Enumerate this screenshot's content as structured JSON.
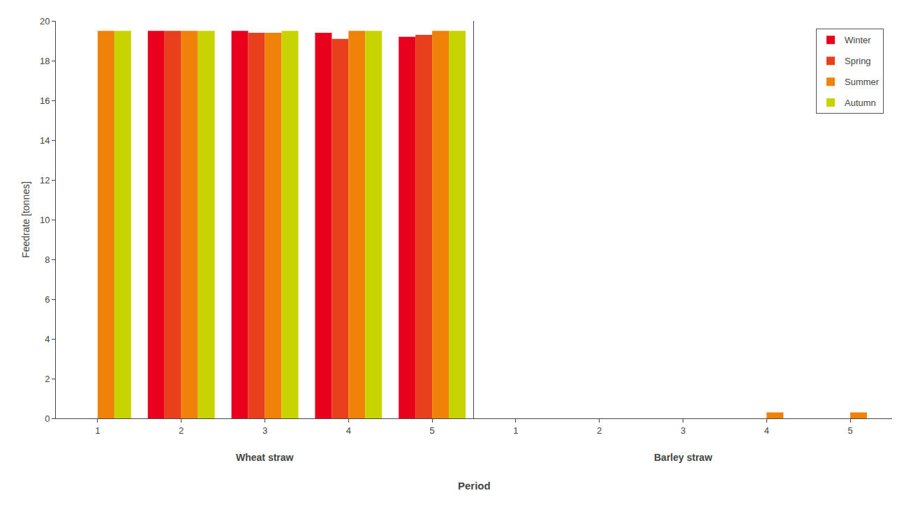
{
  "chart_data": [
    {
      "type": "bar",
      "title": "Wheat straw",
      "xlabel": "Period",
      "ylabel": "Feedrate [tonnes]",
      "categories": [
        1,
        2,
        3,
        4,
        5
      ],
      "series": [
        {
          "name": "Winter",
          "color": "#e8001c",
          "values": [
            0,
            19.5,
            19.5,
            19.4,
            19.2
          ]
        },
        {
          "name": "Spring",
          "color": "#e8401c",
          "values": [
            0,
            19.5,
            19.4,
            19.1,
            19.3
          ]
        },
        {
          "name": "Summer",
          "color": "#f0820a",
          "values": [
            19.5,
            19.5,
            19.4,
            19.5,
            19.5
          ]
        },
        {
          "name": "Autumn",
          "color": "#c8d400",
          "values": [
            19.5,
            19.5,
            19.5,
            19.5,
            19.5
          ]
        }
      ],
      "ylim": [
        0,
        20
      ],
      "yticks": [
        0,
        2,
        4,
        6,
        8,
        10,
        12,
        14,
        16,
        18,
        20
      ],
      "grid": false
    },
    {
      "type": "bar",
      "title": "Barley straw",
      "categories": [
        1,
        2,
        3,
        4,
        5
      ],
      "series": [
        {
          "name": "Winter",
          "color": "#e8001c",
          "values": [
            0,
            0,
            0,
            0,
            0
          ]
        },
        {
          "name": "Spring",
          "color": "#e8401c",
          "values": [
            0,
            0,
            0,
            0,
            0
          ]
        },
        {
          "name": "Summer",
          "color": "#f0820a",
          "values": [
            0,
            0,
            0,
            0.3,
            0.3
          ]
        },
        {
          "name": "Autumn",
          "color": "#c8d400",
          "values": [
            0,
            0,
            0,
            0,
            0
          ]
        }
      ],
      "ylim": [
        0,
        20
      ],
      "yticks": [
        0,
        2,
        4,
        6,
        8,
        10,
        12,
        14,
        16,
        18,
        20
      ],
      "grid": false,
      "tick_labels": "x",
      "legend": "upper right"
    }
  ]
}
